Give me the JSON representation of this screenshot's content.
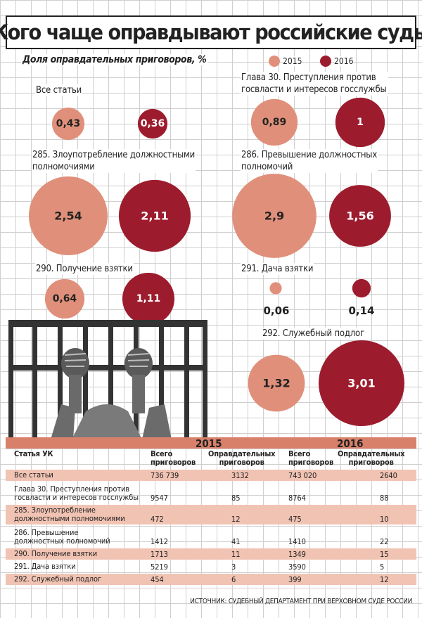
{
  "title": "Кого чаще оправдывают российские суды",
  "subtitle": "Доля оправдательных приговоров, %",
  "legend": [
    {
      "label": "2015",
      "color": "#e0907a"
    },
    {
      "label": "2016",
      "color": "#9c1c2e"
    }
  ],
  "chart_data": {
    "type": "bubble",
    "title": "Кого чаще оправдывают российские суды",
    "subtitle": "Доля оправдательных приговоров, %",
    "series": [
      {
        "name": "2015",
        "color": "#e0907a"
      },
      {
        "name": "2016",
        "color": "#9c1c2e"
      }
    ],
    "categories": [
      {
        "label": "Все статьи",
        "values": [
          0.43,
          0.36
        ],
        "display": [
          "0,43",
          "0,36"
        ]
      },
      {
        "label": "Глава 30. Преступления против госвласти и интересов госслужбы",
        "values": [
          0.89,
          1
        ],
        "display": [
          "0,89",
          "1"
        ]
      },
      {
        "label": "285. Злоупотребление должностными полномочиями",
        "values": [
          2.54,
          2.11
        ],
        "display": [
          "2,54",
          "2,11"
        ]
      },
      {
        "label": "286. Превышение должностных полномочий",
        "values": [
          2.9,
          1.56
        ],
        "display": [
          "2,9",
          "1,56"
        ]
      },
      {
        "label": "290. Получение взятки",
        "values": [
          0.64,
          1.11
        ],
        "display": [
          "0,64",
          "1,11"
        ]
      },
      {
        "label": "291. Дача взятки",
        "values": [
          0.06,
          0.14
        ],
        "display": [
          "0,06",
          "0,14"
        ]
      },
      {
        "label": "292. Служебный подлог",
        "values": [
          1.32,
          3.01
        ],
        "display": [
          "1,32",
          "3,01"
        ]
      }
    ]
  },
  "cat_labels": {
    "all": "Все статьи",
    "ch30": [
      "Глава 30. Преступления против",
      "госвласти и интересов госслужбы"
    ],
    "a285": [
      "285. Злоупотребление должностными",
      "полномочиями"
    ],
    "a286": [
      "286. Превышение должностных",
      "полномочий"
    ],
    "a290": "290. Получение взятки",
    "a291": "291. Дача взятки",
    "a292": "292. Служебный подлог"
  },
  "table": {
    "years": [
      "2015",
      "2016"
    ],
    "col_article": "Статья УК",
    "col_total": [
      "Всего",
      "приговоров"
    ],
    "col_acquit": [
      "Оправдательных",
      "приговоров"
    ],
    "rows": [
      {
        "name": [
          "Все статьи"
        ],
        "total2015": "736 739",
        "acq2015": "3132",
        "total2016": "743 020",
        "acq2016": "2640"
      },
      {
        "name": [
          "Глава 30. Преступления против",
          "госвласти и интересов госслужбы"
        ],
        "total2015": "9547",
        "acq2015": "85",
        "total2016": "8764",
        "acq2016": "88"
      },
      {
        "name": [
          "285. Злоупотребление",
          "должностными полномочиями"
        ],
        "total2015": "472",
        "acq2015": "12",
        "total2016": "475",
        "acq2016": "10"
      },
      {
        "name": [
          "286. Превышение",
          "должностных полномочий"
        ],
        "total2015": "1412",
        "acq2015": "41",
        "total2016": "1410",
        "acq2016": "22"
      },
      {
        "name": [
          "290. Получение взятки"
        ],
        "total2015": "1713",
        "acq2015": "11",
        "total2016": "1349",
        "acq2016": "15"
      },
      {
        "name": [
          "291. Дача взятки"
        ],
        "total2015": "5219",
        "acq2015": "3",
        "total2016": "3590",
        "acq2016": "5"
      },
      {
        "name": [
          "292. Служебный подлог"
        ],
        "total2015": "454",
        "acq2015": "6",
        "total2016": "399",
        "acq2016": "12"
      }
    ]
  },
  "source": "ИСТОЧНИК: СУДЕБНЫЙ ДЕПАРТАМЕНТ ПРИ ВЕРХОВНОМ СУДЕ РОССИИ"
}
